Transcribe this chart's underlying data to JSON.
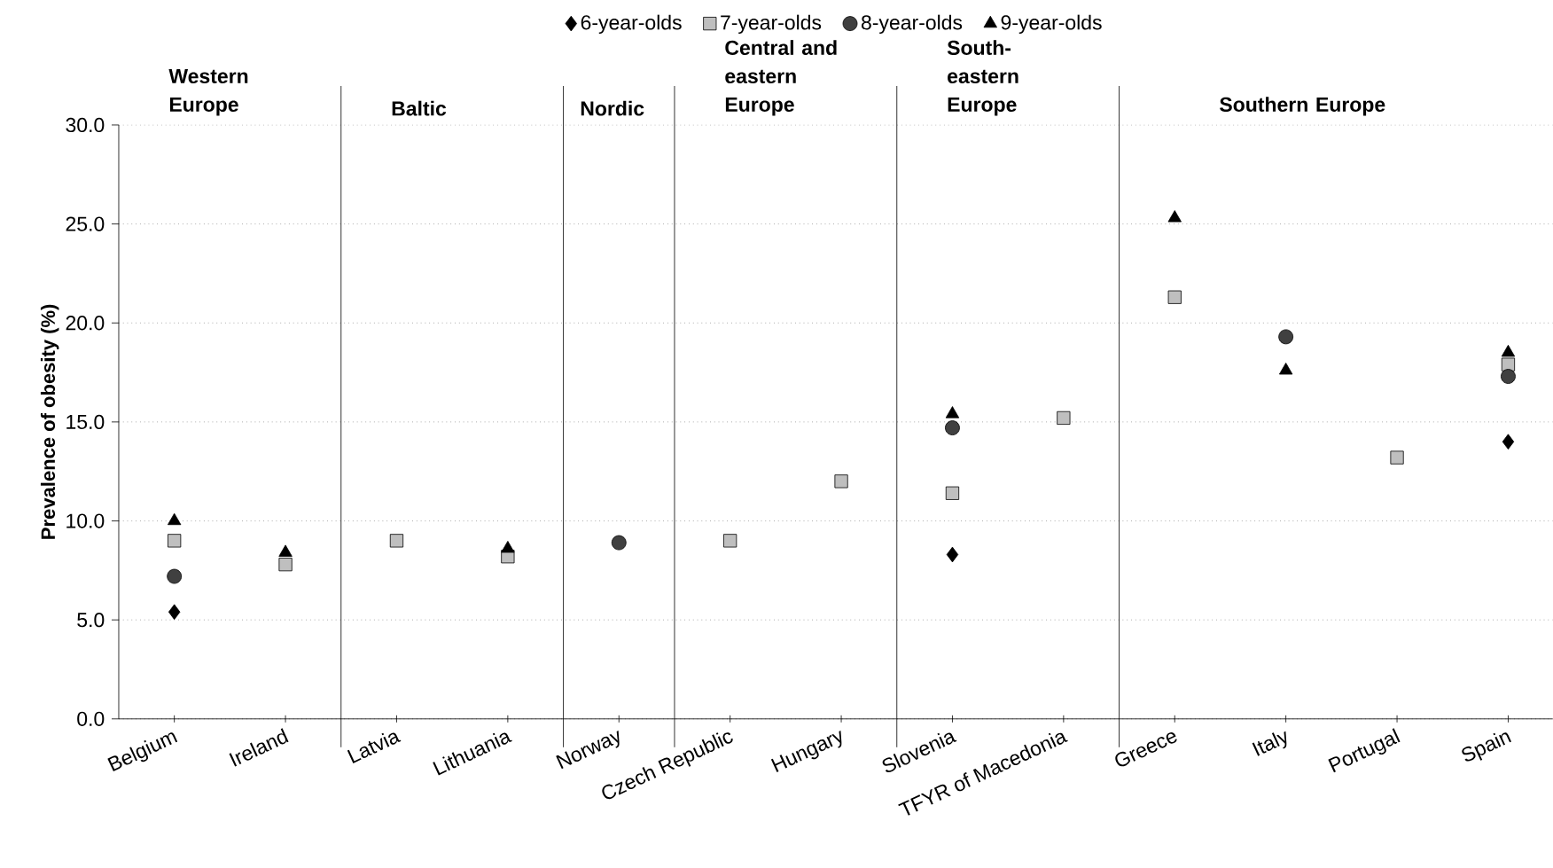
{
  "chart_data": {
    "type": "scatter",
    "ylabel": "Prevalence of obesity (%)",
    "categories": [
      "Belgium",
      "Ireland",
      "Latvia",
      "Lithuania",
      "Norway",
      "Czech Republic",
      "Hungary",
      "Slovenia",
      "TFYR of Macedonia",
      "Greece",
      "Italy",
      "Portugal",
      "Spain"
    ],
    "series": [
      {
        "name": "6-year-olds",
        "color": "#000000",
        "marker": "diamond",
        "values": [
          5.4,
          null,
          null,
          null,
          null,
          null,
          null,
          8.3,
          null,
          null,
          null,
          null,
          14.0
        ]
      },
      {
        "name": "7-year-olds",
        "color": "#bfbfbf",
        "marker": "square",
        "values": [
          9.0,
          7.8,
          9.0,
          8.2,
          null,
          9.0,
          12.0,
          11.4,
          15.2,
          21.3,
          null,
          13.2,
          17.9
        ]
      },
      {
        "name": "8-year-olds",
        "color": "#404040",
        "marker": "circle",
        "values": [
          7.2,
          null,
          null,
          null,
          8.9,
          null,
          null,
          14.7,
          null,
          null,
          19.3,
          null,
          17.3
        ]
      },
      {
        "name": "9-year-olds",
        "color": "#000000",
        "marker": "triangle",
        "values": [
          10.0,
          8.4,
          null,
          8.6,
          null,
          null,
          null,
          15.4,
          null,
          25.3,
          17.6,
          null,
          18.5
        ]
      }
    ],
    "ylim": [
      0,
      30
    ],
    "yticks": [
      {
        "value": 0,
        "label": "0.0"
      },
      {
        "value": 5,
        "label": "5.0"
      },
      {
        "value": 10,
        "label": "10.0"
      },
      {
        "value": 15,
        "label": "15.0"
      },
      {
        "value": 20,
        "label": "20.0"
      },
      {
        "value": 25,
        "label": "25.0"
      },
      {
        "value": 30,
        "label": "30.0"
      }
    ],
    "annotations": [
      "Western Europe",
      "Baltic",
      "Nordic",
      "Central and eastern Europe",
      "South-eastern Europe",
      "Southern Europe"
    ],
    "grid": "y",
    "legend": "top"
  }
}
